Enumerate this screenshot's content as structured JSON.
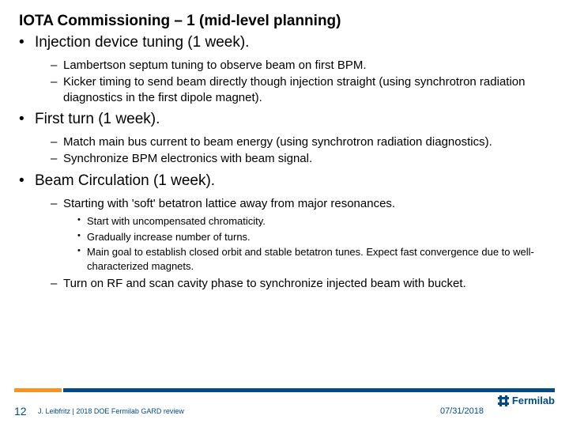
{
  "title": "IOTA Commissioning – 1  (mid-level planning)",
  "bullets": [
    {
      "text": "Injection device tuning (1 week).",
      "sub": [
        {
          "text": "Lambertson septum tuning to observe beam on first BPM."
        },
        {
          "text": "Kicker timing to send beam directly though injection straight (using synchrotron radiation diagnostics in the first dipole magnet)."
        }
      ]
    },
    {
      "text": "First turn (1 week).",
      "sub": [
        {
          "text": "Match main bus current to beam energy (using synchrotron radiation diagnostics)."
        },
        {
          "text": "Synchronize BPM electronics with beam signal."
        }
      ]
    },
    {
      "text": "Beam Circulation (1 week).",
      "sub": [
        {
          "text": "Starting with 'soft' betatron lattice away from major resonances.",
          "sub": [
            {
              "text": "Start with uncompensated chromaticity."
            },
            {
              "text": "Gradually increase number of turns."
            },
            {
              "text": "Main goal to establish closed orbit and stable betatron tunes. Expect fast convergence due to well-characterized magnets."
            }
          ]
        },
        {
          "text": "Turn on RF and scan cavity phase to synchronize injected beam with bucket."
        }
      ]
    }
  ],
  "footer": {
    "page": "12",
    "credit": "J. Leibfritz | 2018 DOE Fermilab GARD review",
    "date": "07/31/2018",
    "logo_text": "Fermilab"
  },
  "colors": {
    "brand_blue": "#004b87",
    "brand_orange": "#f7941d",
    "text": "#000000",
    "background": "#ffffff"
  },
  "typography": {
    "title_fontsize": 19,
    "title_weight": "bold",
    "lvl0_fontsize": 19,
    "lvl1_fontsize": 15,
    "lvl2_fontsize": 13,
    "footer_fontsize": 10,
    "font_family": "Arial"
  }
}
